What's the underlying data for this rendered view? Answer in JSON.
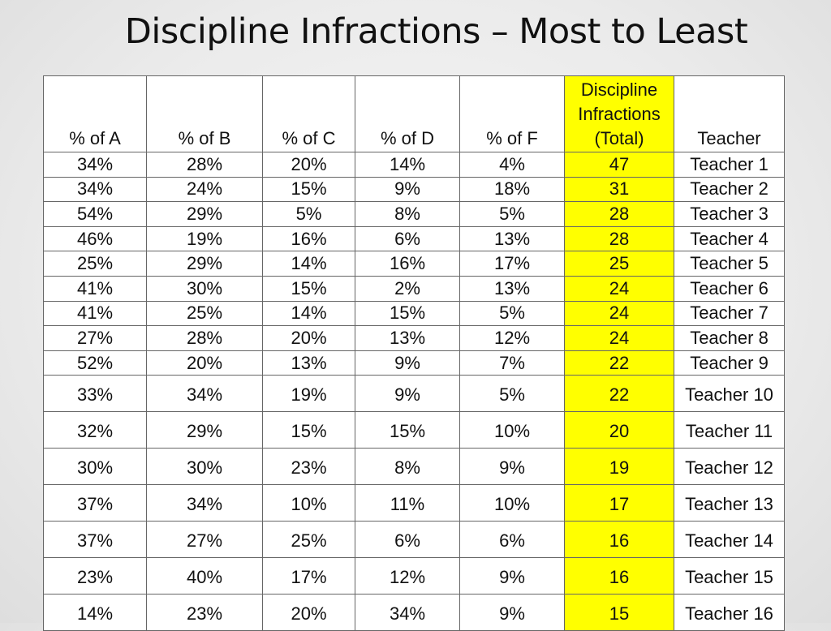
{
  "title": "Discipline Infractions – Most to Least",
  "colors": {
    "highlight": "#ffff00",
    "border": "#666666",
    "background": "#ebebeb"
  },
  "table": {
    "headers": [
      "% of A",
      "% of B",
      "% of C",
      "% of D",
      "% of F",
      [
        "Discipline",
        "Infractions",
        "(Total)"
      ],
      "Teacher"
    ],
    "rows": [
      [
        "34%",
        "28%",
        "20%",
        "14%",
        "4%",
        "47",
        "Teacher 1"
      ],
      [
        "34%",
        "24%",
        "15%",
        "9%",
        "18%",
        "31",
        "Teacher 2"
      ],
      [
        "54%",
        "29%",
        "5%",
        "8%",
        "5%",
        "28",
        "Teacher 3"
      ],
      [
        "46%",
        "19%",
        "16%",
        "6%",
        "13%",
        "28",
        "Teacher 4"
      ],
      [
        "25%",
        "29%",
        "14%",
        "16%",
        "17%",
        "25",
        "Teacher 5"
      ],
      [
        "41%",
        "30%",
        "15%",
        "2%",
        "13%",
        "24",
        "Teacher 6"
      ],
      [
        "41%",
        "25%",
        "14%",
        "15%",
        "5%",
        "24",
        "Teacher 7"
      ],
      [
        "27%",
        "28%",
        "20%",
        "13%",
        "12%",
        "24",
        "Teacher 8"
      ],
      [
        "52%",
        "20%",
        "13%",
        "9%",
        "7%",
        "22",
        "Teacher 9"
      ],
      [
        "33%",
        "34%",
        "19%",
        "9%",
        "5%",
        "22",
        "Teacher 10"
      ],
      [
        "32%",
        "29%",
        "15%",
        "15%",
        "10%",
        "20",
        "Teacher 11"
      ],
      [
        "30%",
        "30%",
        "23%",
        "8%",
        "9%",
        "19",
        "Teacher 12"
      ],
      [
        "37%",
        "34%",
        "10%",
        "11%",
        "10%",
        "17",
        "Teacher 13"
      ],
      [
        "37%",
        "27%",
        "25%",
        "6%",
        "6%",
        "16",
        "Teacher 14"
      ],
      [
        "23%",
        "40%",
        "17%",
        "12%",
        "9%",
        "16",
        "Teacher 15"
      ],
      [
        "14%",
        "23%",
        "20%",
        "34%",
        "9%",
        "15",
        "Teacher 16"
      ]
    ]
  }
}
